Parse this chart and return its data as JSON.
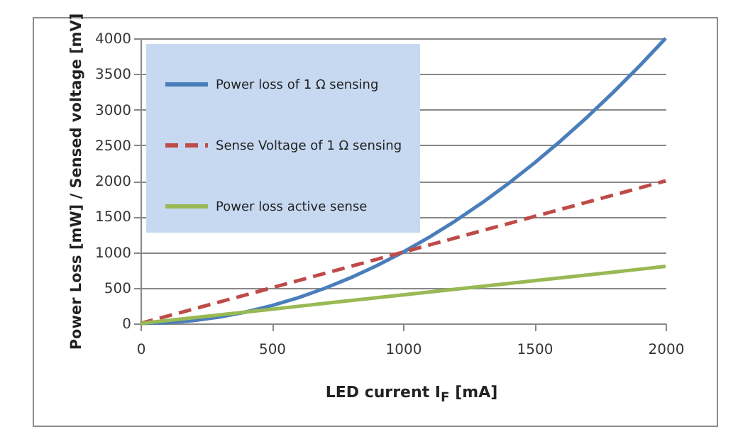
{
  "chart_data": {
    "type": "line",
    "xlabel": "LED current I$_{F}$ [mA]",
    "ylabel": "Power Loss [mW] / Sensed voltage [mV]",
    "x": [
      0,
      100,
      200,
      300,
      400,
      500,
      600,
      700,
      800,
      900,
      1000,
      1100,
      1200,
      1300,
      1400,
      1500,
      1600,
      1700,
      1800,
      1900,
      2000
    ],
    "series": [
      {
        "name": "Power loss of 1 Ω sensing",
        "color": "#4a7ebb",
        "line_style": "solid",
        "values": [
          0,
          10,
          40,
          90,
          160,
          250,
          360,
          490,
          640,
          810,
          1000,
          1210,
          1440,
          1690,
          1960,
          2250,
          2560,
          2890,
          3240,
          3610,
          4000
        ]
      },
      {
        "name": "Sense Voltage of 1 Ω sensing",
        "color": "#be4b48",
        "line_style": "dashed",
        "values": [
          0,
          100,
          200,
          300,
          400,
          500,
          600,
          700,
          800,
          900,
          1000,
          1100,
          1200,
          1300,
          1400,
          1500,
          1600,
          1700,
          1800,
          1900,
          2000
        ]
      },
      {
        "name": "Power loss active sense",
        "color": "#98b954",
        "line_style": "solid",
        "values": [
          0,
          40,
          80,
          120,
          160,
          200,
          240,
          280,
          320,
          360,
          400,
          440,
          480,
          520,
          560,
          600,
          640,
          680,
          720,
          760,
          800
        ]
      }
    ],
    "xlim": [
      0,
      2000
    ],
    "xticks": [
      0,
      500,
      1000,
      1500,
      2000
    ],
    "ylim": [
      0,
      4000
    ],
    "yticks": [
      0,
      500,
      1000,
      1500,
      2000,
      2500,
      3000,
      3500,
      4000
    ],
    "grid": "y",
    "legend": "top left",
    "marker": "none"
  }
}
